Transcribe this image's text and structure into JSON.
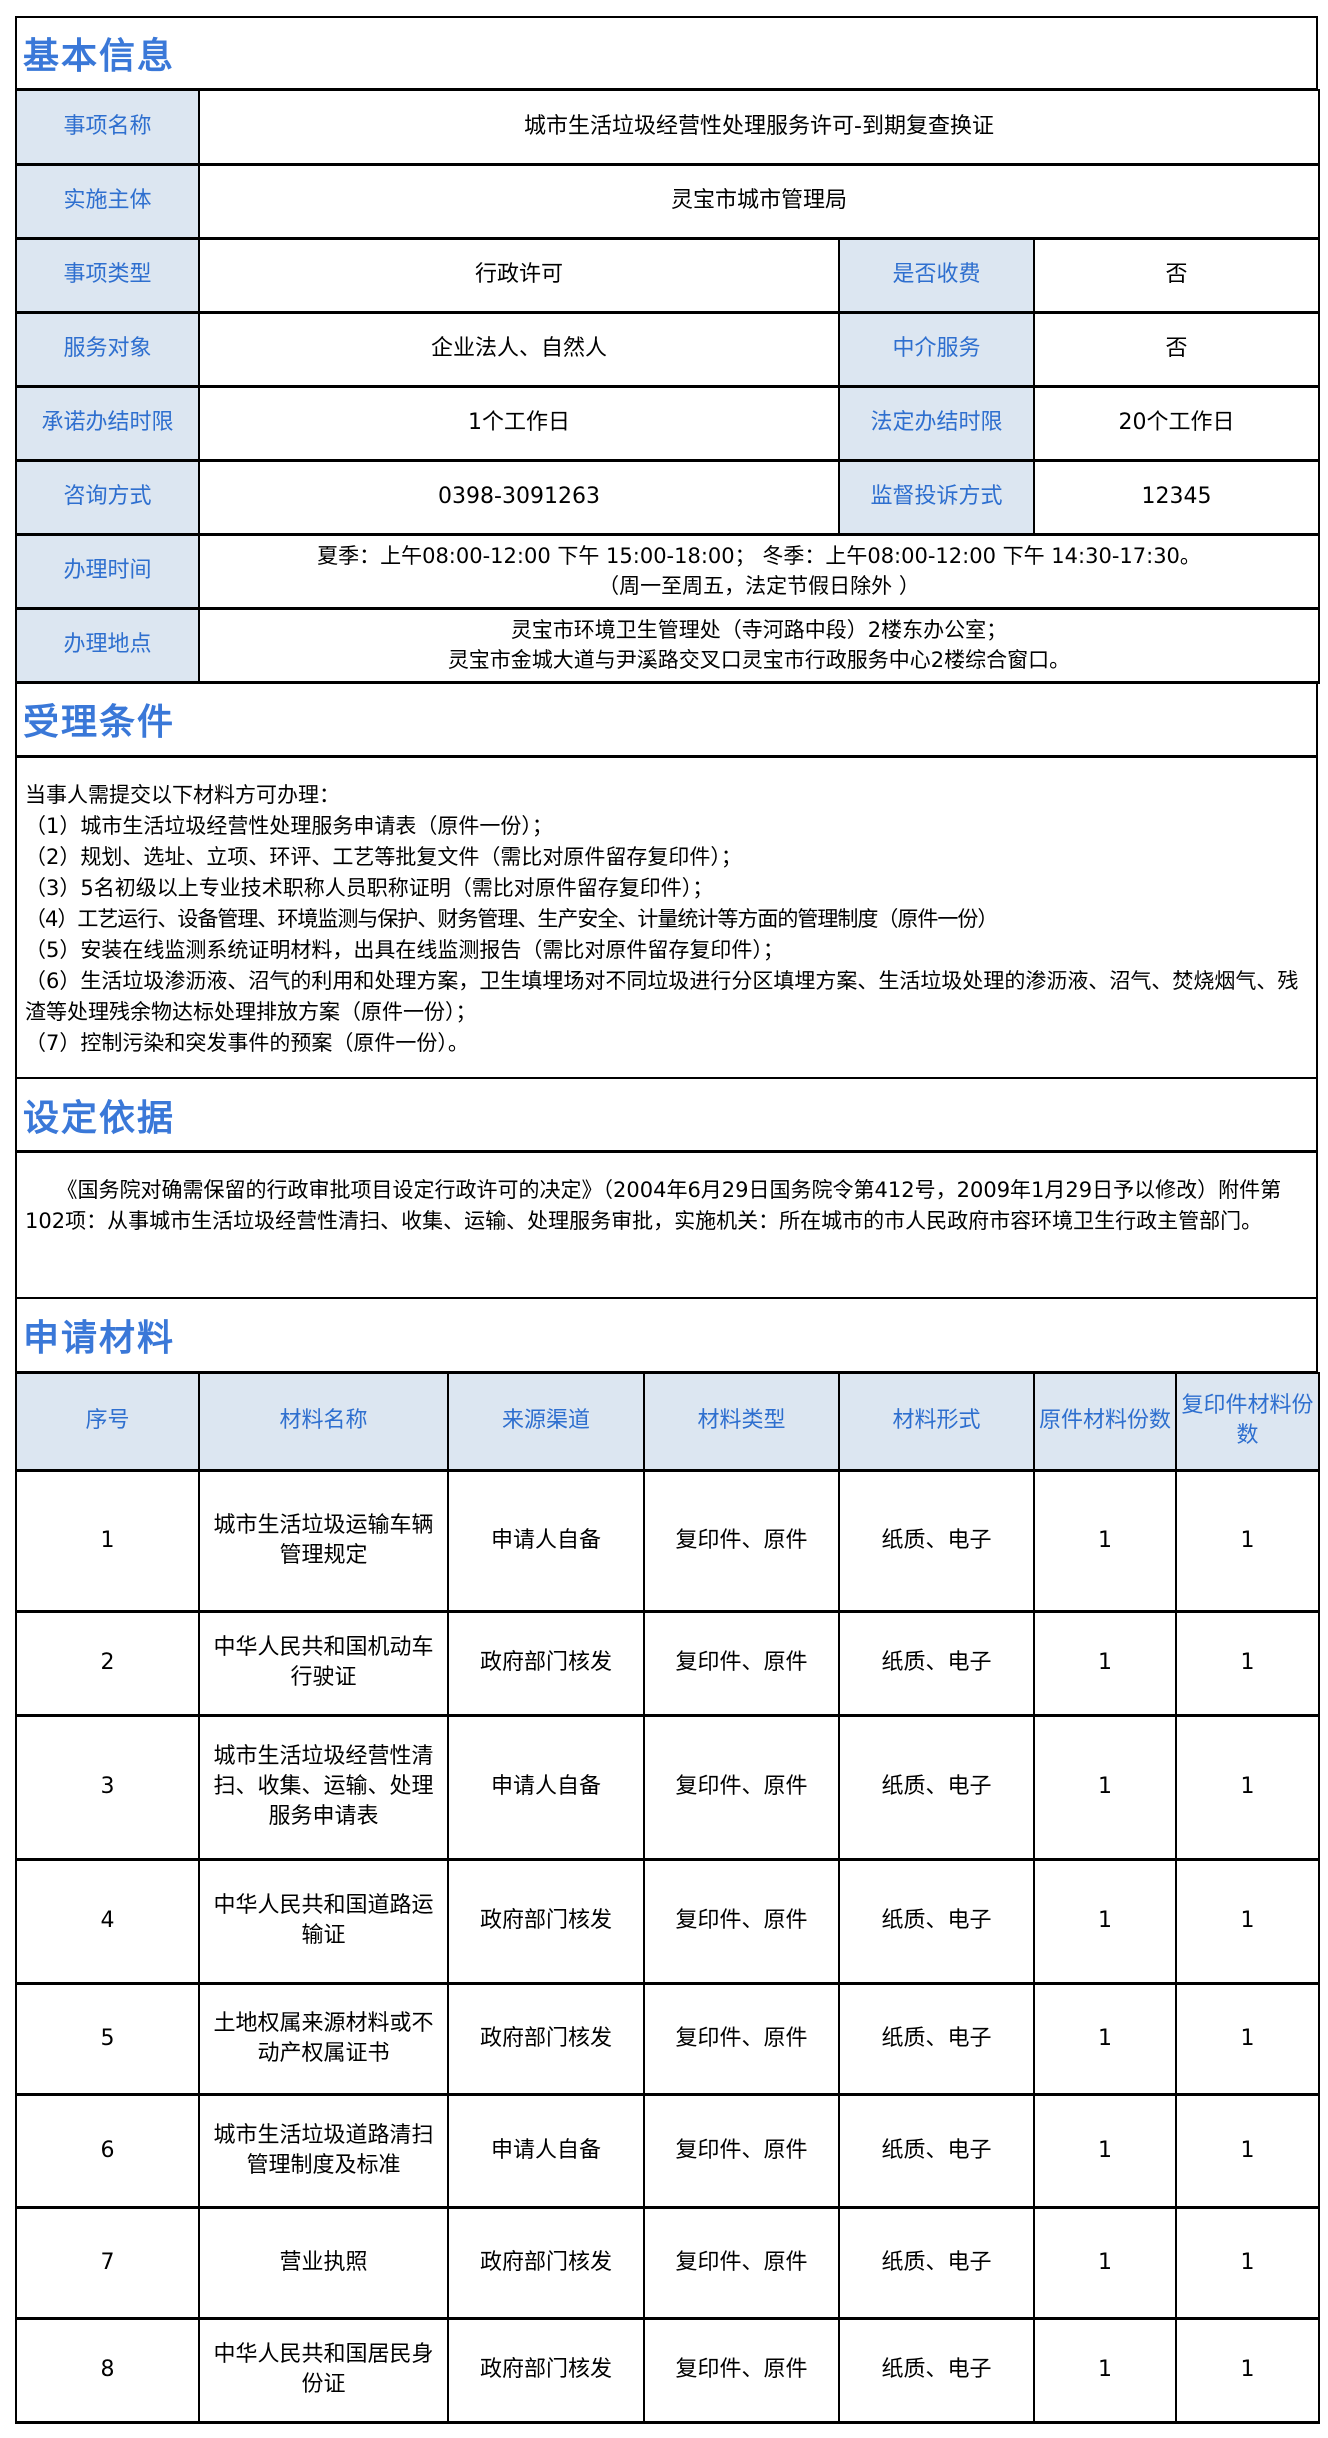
{
  "basic": {
    "title": "基本信息",
    "rows": {
      "name_label": "事项名称",
      "name_value": "城市生活垃圾经营性处理服务许可-到期复查换证",
      "body_label": "实施主体",
      "body_value": "灵宝市城市管理局",
      "type_label": "事项类型",
      "type_value": "行政许可",
      "fee_label": "是否收费",
      "fee_value": "否",
      "target_label": "服务对象",
      "target_value": "企业法人、自然人",
      "agent_label": "中介服务",
      "agent_value": "否",
      "promise_label": "承诺办结时限",
      "promise_value": "1个工作日",
      "legal_label": "法定办结时限",
      "legal_value": "20个工作日",
      "consult_label": "咨询方式",
      "consult_value": "0398-3091263",
      "complaint_label": "监督投诉方式",
      "complaint_value": "12345",
      "hours_label": "办理时间",
      "hours_line1": "夏季：上午08:00-12:00 下午 15:00-18:00；  冬季：上午08:00-12:00 下午 14:30-17:30。",
      "hours_line2": "（周一至周五，法定节假日除外 ）",
      "place_label": "办理地点",
      "place_line1": "灵宝市环境卫生管理处（寺河路中段）2楼东办公室；",
      "place_line2": "灵宝市金城大道与尹溪路交叉口灵宝市行政服务中心2楼综合窗口。"
    }
  },
  "conditions": {
    "title": "受理条件",
    "lines": [
      "当事人需提交以下材料方可办理：",
      "（1）城市生活垃圾经营性处理服务申请表（原件一份）；",
      "（2）规划、选址、立项、环评、工艺等批复文件（需比对原件留存复印件）；",
      "（3）5名初级以上专业技术职称人员职称证明（需比对原件留存复印件）；",
      "（4）工艺运行、设备管理、环境监测与保护、财务管理、生产安全、计量统计等方面的管理制度（原件一份）",
      "（5）安装在线监测系统证明材料，出具在线监测报告（需比对原件留存复印件）；",
      "（6）生活垃圾渗沥液、沼气的利用和处理方案，卫生填埋场对不同垃圾进行分区填埋方案、生活垃圾处理的渗沥液、沼气、焚烧烟气、残渣等处理残余物达标处理排放方案（原件一份）；",
      "（7）控制污染和突发事件的预案（原件一份）。"
    ]
  },
  "basis": {
    "title": "设定依据",
    "text": "《国务院对确需保留的行政审批项目设定行政许可的决定》（2004年6月29日国务院令第412号，2009年1月29日予以修改）附件第102项：从事城市生活垃圾经营性清扫、收集、运输、处理服务审批，实施机关：所在城市的市人民政府市容环境卫生行政主管部门。"
  },
  "materials": {
    "title": "申请材料",
    "headers": [
      "序号",
      "材料名称",
      "来源渠道",
      "材料类型",
      "材料形式",
      "原件材料份数",
      "复印件材料份数"
    ],
    "rows": [
      [
        "1",
        "城市生活垃圾运输车辆管理规定",
        "申请人自备",
        "复印件、原件",
        "纸质、电子",
        "1",
        "1"
      ],
      [
        "2",
        "中华人民共和国机动车行驶证",
        "政府部门核发",
        "复印件、原件",
        "纸质、电子",
        "1",
        "1"
      ],
      [
        "3",
        "城市生活垃圾经营性清扫、收集、运输、处理服务申请表",
        "申请人自备",
        "复印件、原件",
        "纸质、电子",
        "1",
        "1"
      ],
      [
        "4",
        "中华人民共和国道路运输证",
        "政府部门核发",
        "复印件、原件",
        "纸质、电子",
        "1",
        "1"
      ],
      [
        "5",
        "土地权属来源材料或不动产权属证书",
        "政府部门核发",
        "复印件、原件",
        "纸质、电子",
        "1",
        "1"
      ],
      [
        "6",
        "城市生活垃圾道路清扫管理制度及标准",
        "申请人自备",
        "复印件、原件",
        "纸质、电子",
        "1",
        "1"
      ],
      [
        "7",
        "营业执照",
        "政府部门核发",
        "复印件、原件",
        "纸质、电子",
        "1",
        "1"
      ],
      [
        "8",
        "中华人民共和国居民身份证",
        "政府部门核发",
        "复印件、原件",
        "纸质、电子",
        "1",
        "1"
      ]
    ]
  },
  "colors": {
    "title": "#3a78d8",
    "label_bg": "#dce6f1",
    "label_text": "#2e6fcf"
  }
}
